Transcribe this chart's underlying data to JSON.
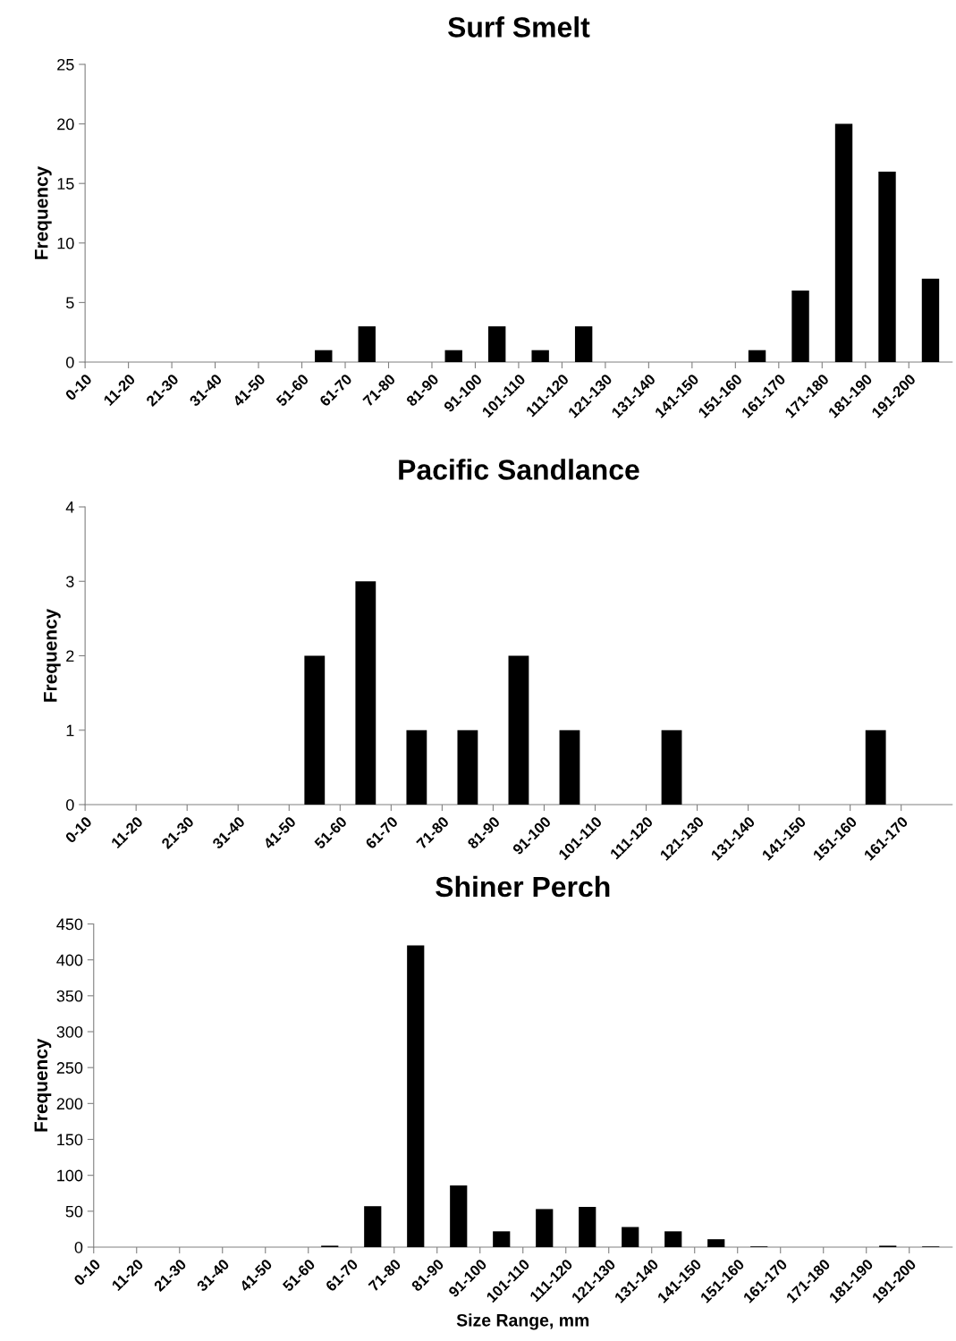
{
  "chart_data": [
    {
      "type": "bar",
      "title": "Surf Smelt",
      "ylabel": "Frequency",
      "color": "#000000",
      "ylim": [
        0,
        25
      ],
      "yticks": [
        0,
        5,
        10,
        15,
        20,
        25
      ],
      "categories": [
        "0-10",
        "11-20",
        "21-30",
        "31-40",
        "41-50",
        "51-60",
        "61-70",
        "71-80",
        "81-90",
        "91-100",
        "101-110",
        "111-120",
        "121-130",
        "131-140",
        "141-150",
        "151-160",
        "161-170",
        "171-180",
        "181-190",
        "191-200"
      ],
      "values": [
        0,
        0,
        0,
        0,
        0,
        1,
        3,
        0,
        1,
        3,
        1,
        3,
        0,
        0,
        0,
        1,
        6,
        20,
        16,
        7
      ]
    },
    {
      "type": "bar",
      "title": "Pacific Sandlance",
      "ylabel": "Frequency",
      "color": "#000000",
      "ylim": [
        0,
        4
      ],
      "yticks": [
        0,
        1,
        2,
        3,
        4
      ],
      "categories": [
        "0-10",
        "11-20",
        "21-30",
        "31-40",
        "41-50",
        "51-60",
        "61-70",
        "71-80",
        "81-90",
        "91-100",
        "101-110",
        "111-120",
        "121-130",
        "131-140",
        "141-150",
        "151-160",
        "161-170"
      ],
      "values": [
        0,
        0,
        0,
        0,
        2,
        3,
        1,
        1,
        2,
        1,
        0,
        1,
        0,
        0,
        0,
        1,
        0
      ]
    },
    {
      "type": "bar",
      "title": "Shiner Perch",
      "ylabel": "Frequency",
      "xlabel": "Size Range, mm",
      "color": "#000000",
      "ylim": [
        0,
        450
      ],
      "yticks": [
        0,
        50,
        100,
        150,
        200,
        250,
        300,
        350,
        400,
        450
      ],
      "categories": [
        "0-10",
        "11-20",
        "21-30",
        "31-40",
        "41-50",
        "51-60",
        "61-70",
        "71-80",
        "81-90",
        "91-100",
        "101-110",
        "111-120",
        "121-130",
        "131-140",
        "141-150",
        "151-160",
        "161-170",
        "171-180",
        "181-190",
        "191-200"
      ],
      "values": [
        0,
        0,
        0,
        0,
        0,
        2,
        57,
        420,
        86,
        22,
        53,
        56,
        28,
        22,
        11,
        1,
        0,
        0,
        2,
        1
      ]
    }
  ]
}
